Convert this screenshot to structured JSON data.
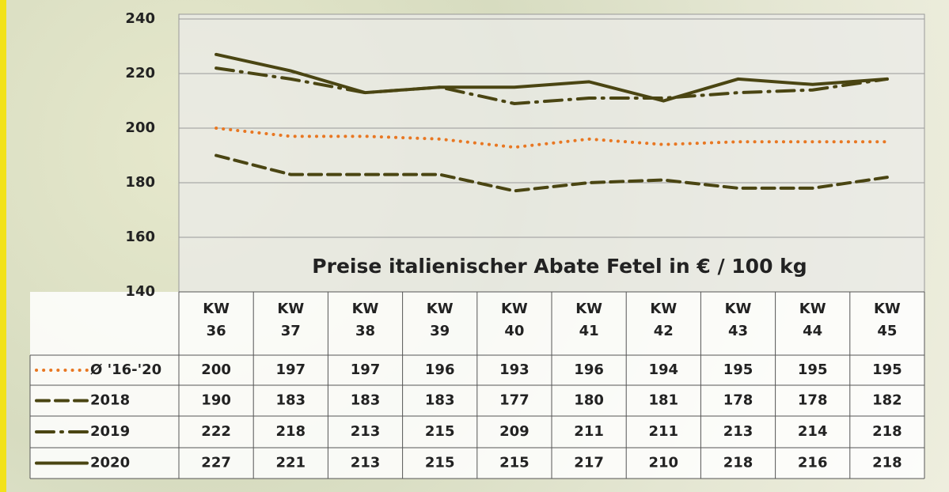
{
  "chart_data": {
    "type": "line",
    "title": "Preise italienischer Abate Fetel in € / 100 kg",
    "categories": [
      "KW 36",
      "KW 37",
      "KW 38",
      "KW 39",
      "KW 40",
      "KW 41",
      "KW 42",
      "KW 43",
      "KW 44",
      "KW 45"
    ],
    "ylim": [
      140,
      240
    ],
    "yticks": [
      140,
      160,
      180,
      200,
      220,
      240
    ],
    "grid": true,
    "series": [
      {
        "name": "Ø '16-'20",
        "color": "#e87722",
        "dash": "dotted",
        "values": [
          200,
          197,
          197,
          196,
          193,
          196,
          194,
          195,
          195,
          195
        ]
      },
      {
        "name": "2018",
        "color": "#4a4512",
        "dash": "dashed",
        "values": [
          190,
          183,
          183,
          183,
          177,
          180,
          181,
          178,
          178,
          182
        ]
      },
      {
        "name": "2019",
        "color": "#4a4512",
        "dash": "dashdot",
        "values": [
          222,
          218,
          213,
          215,
          209,
          211,
          211,
          213,
          214,
          218
        ]
      },
      {
        "name": "2020",
        "color": "#4a4512",
        "dash": "solid",
        "values": [
          227,
          221,
          213,
          215,
          215,
          217,
          210,
          218,
          216,
          218
        ]
      }
    ]
  }
}
